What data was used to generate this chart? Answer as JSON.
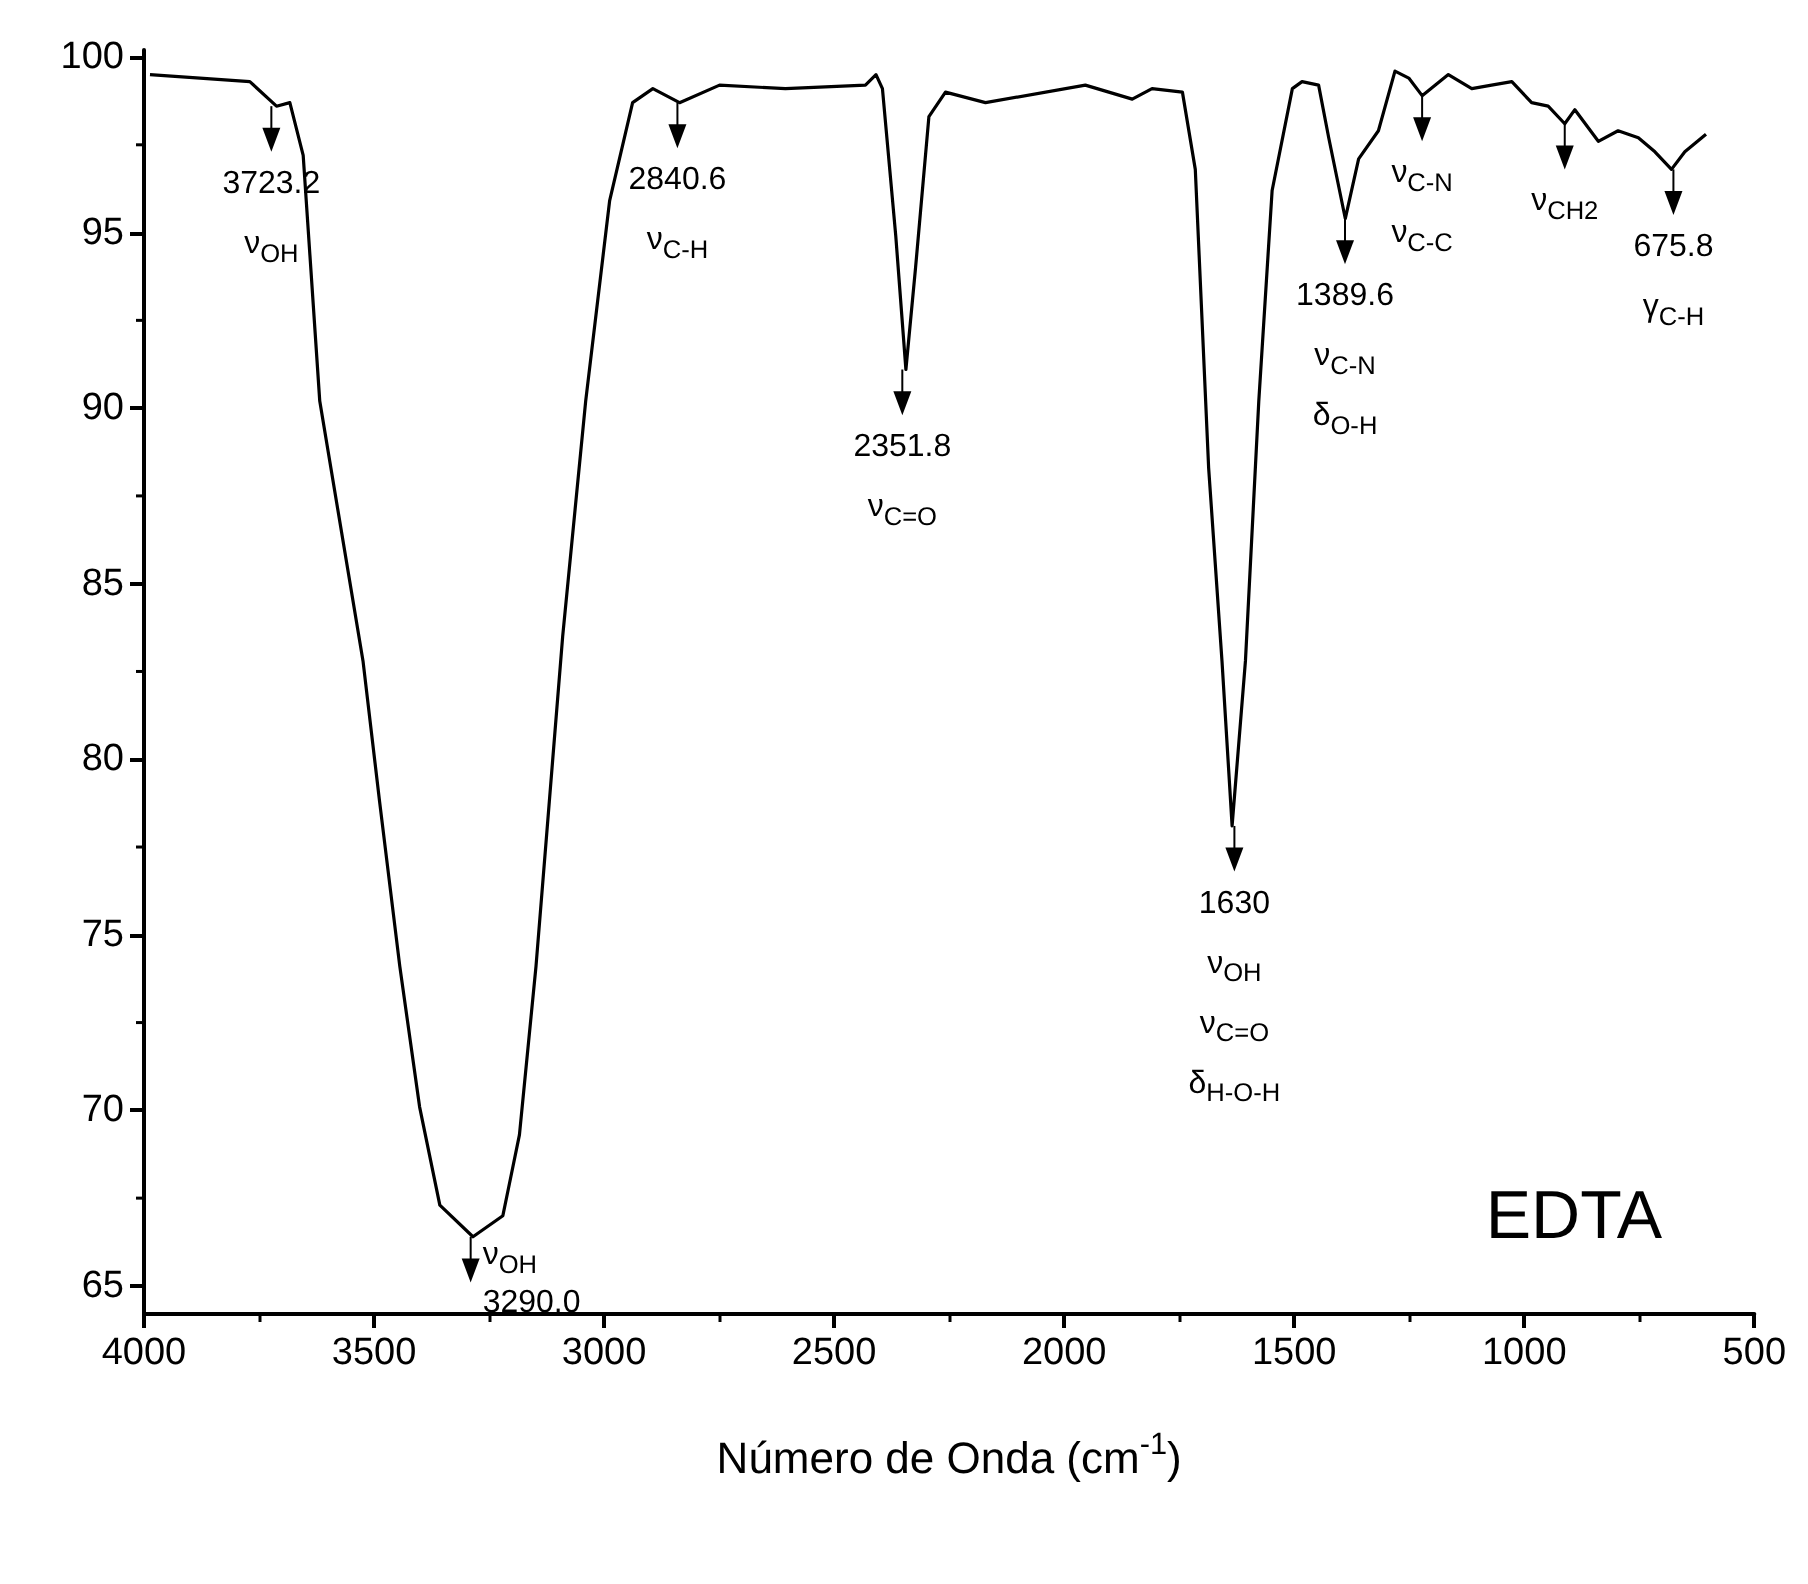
{
  "chart_data": {
    "type": "line",
    "title": "EDTA",
    "xlabel": "Número de Onda (cm$^{-1}$)",
    "x": [
      3987,
      3770,
      3712,
      3683,
      3654,
      3618,
      3524,
      3488,
      3444,
      3401,
      3357,
      3285,
      3220,
      3184,
      3148,
      3119,
      3090,
      3040,
      2988,
      2938,
      2894,
      2836,
      2749,
      2606,
      2432,
      2409,
      2395,
      2366,
      2344,
      2323,
      2294,
      2258,
      2171,
      1954,
      1852,
      1809,
      1743,
      1715,
      1686,
      1657,
      1635,
      1606,
      1577,
      1548,
      1504,
      1483,
      1447,
      1425,
      1389,
      1360,
      1317,
      1281,
      1251,
      1222,
      1165,
      1114,
      1071,
      1027,
      984,
      948,
      912,
      890,
      839,
      796,
      752,
      716,
      680,
      651,
      605
    ],
    "series": [
      {
        "color": "#000000",
        "values": [
          99.5,
          99.3,
          98.6,
          98.7,
          97.2,
          90.2,
          82.8,
          78.8,
          74.1,
          70.1,
          67.3,
          66.4,
          67.0,
          69.3,
          74.1,
          78.8,
          83.5,
          90.2,
          95.9,
          98.7,
          99.1,
          98.7,
          99.2,
          99.1,
          99.2,
          99.5,
          99.1,
          94.9,
          91.1,
          94.0,
          98.3,
          99.0,
          98.7,
          99.2,
          98.8,
          99.1,
          99.0,
          96.8,
          88.3,
          82.8,
          78.1,
          82.8,
          90.2,
          96.2,
          99.1,
          99.3,
          99.2,
          97.7,
          95.4,
          97.1,
          97.9,
          99.6,
          99.4,
          98.9,
          99.5,
          99.1,
          99.2,
          99.3,
          98.7,
          98.6,
          98.1,
          98.5,
          97.6,
          97.9,
          97.7,
          97.3,
          96.8,
          97.3,
          97.8
        ]
      }
    ],
    "xlim": [
      4000,
      500
    ],
    "xticks": [
      4000,
      3500,
      3000,
      2500,
      2000,
      1500,
      1000,
      500
    ],
    "ylim": [
      64.2,
      100.2
    ],
    "yticks": [
      65,
      70,
      75,
      80,
      85,
      90,
      95,
      100
    ],
    "grid": false,
    "annotations": [
      {
        "text": "3723.2\nν$_{OH}$",
        "x": 3723.2,
        "y": 98.6
      },
      {
        "text": "ν$_{OH}$\n3290.0",
        "x": 3290.0,
        "y": 66.4
      },
      {
        "text": "2840.6\nν$_{C-H}$",
        "x": 2840.6,
        "y": 98.7
      },
      {
        "text": "2351.8\nν$_{C=O}$",
        "x": 2351.8,
        "y": 91.1
      },
      {
        "text": "1630\nν$_{OH}$\nν$_{C=O}$\nδ$_{H-O-H}$",
        "x": 1630,
        "y": 78.1
      },
      {
        "text": "1389.6\nν$_{C-N}$\nδ$_{O-H}$",
        "x": 1389.6,
        "y": 95.4
      },
      {
        "text": "ν$_{C-N}$\nν$_{C-C}$",
        "x": 1222,
        "y": 98.9
      },
      {
        "text": "ν$_{CH2}$",
        "x": 912,
        "y": 98.1
      },
      {
        "text": "675.8\nγ$_{C-H}$",
        "x": 675.8,
        "y": 96.8
      }
    ]
  }
}
